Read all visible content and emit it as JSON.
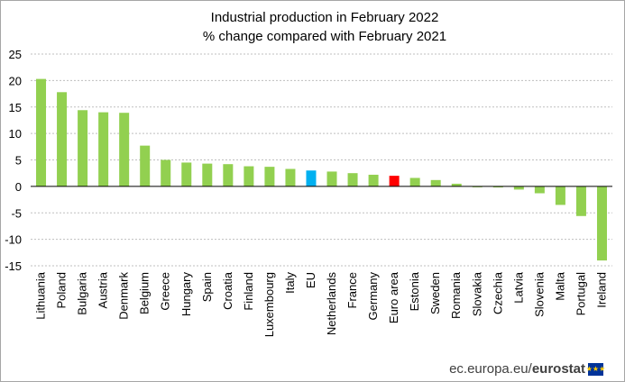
{
  "chart_data": {
    "type": "bar",
    "title": "Industrial production in February 2022",
    "subtitle": "% change compared with February 2021",
    "categories": [
      "Lithuania",
      "Poland",
      "Bulgaria",
      "Austria",
      "Denmark",
      "Belgium",
      "Greece",
      "Hungary",
      "Spain",
      "Croatia",
      "Finland",
      "Luxembourg",
      "Italy",
      "EU",
      "Netherlands",
      "France",
      "Germany",
      "Euro area",
      "Estonia",
      "Sweden",
      "Romania",
      "Slovakia",
      "Czechia",
      "Latvia",
      "Slovenia",
      "Malta",
      "Portugal",
      "Ireland"
    ],
    "values": [
      20.3,
      17.8,
      14.4,
      14.0,
      13.9,
      7.7,
      5.0,
      4.5,
      4.3,
      4.2,
      3.8,
      3.7,
      3.3,
      3.0,
      2.8,
      2.5,
      2.2,
      2.0,
      1.6,
      1.2,
      0.5,
      -0.1,
      -0.2,
      -0.6,
      -1.3,
      -3.5,
      -5.6,
      -14.0
    ],
    "bar_colors": {
      "default": "#92d050",
      "EU": "#00b0f0",
      "Euro area": "#ff0000"
    },
    "ylim": [
      -15,
      25
    ],
    "yticks": [
      25,
      20,
      15,
      10,
      5,
      0,
      -5,
      -10,
      -15
    ],
    "grid": true,
    "xlabel": "",
    "ylabel": ""
  },
  "footer": {
    "source_text": "ec.europa.eu/",
    "brand_text": "eurostat",
    "flag_stars": "★★★"
  }
}
